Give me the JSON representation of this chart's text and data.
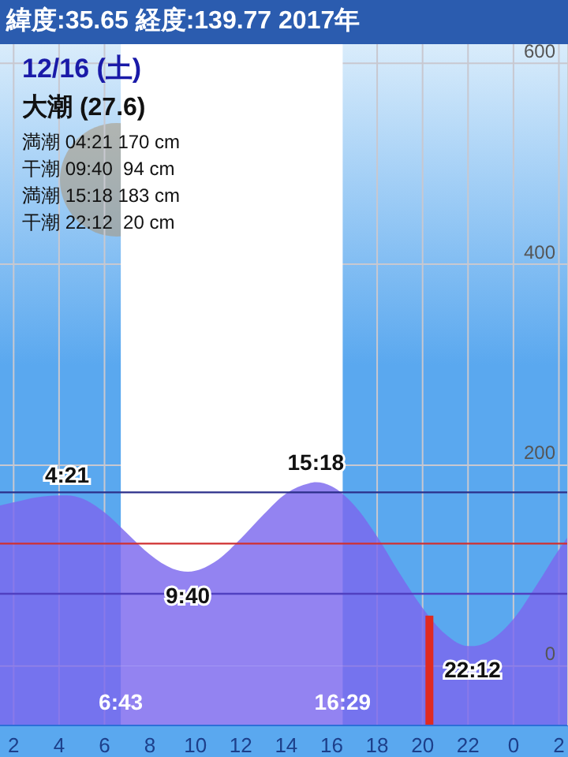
{
  "chart_data": {
    "type": "area",
    "title": "緯度:35.65 経度:139.77  2017年",
    "subtitle": "12/16 (土)",
    "annotations": [
      "大潮 (27.6)",
      "満潮 04:21 170 cm",
      "干潮 09:40  94 cm",
      "満潮 15:18 183 cm",
      "干潮 22:12  20 cm",
      {
        "text": "4:21",
        "x": "2017-12-16T04:21",
        "y": 170
      },
      {
        "text": "9:40",
        "x": "2017-12-16T09:40",
        "y": 94
      },
      {
        "text": "15:18",
        "x": "2017-12-16T15:18",
        "y": 183
      },
      {
        "text": "22:12",
        "x": "2017-12-16T22:12",
        "y": 20
      },
      {
        "text": "6:43",
        "x": "2017-12-16T06:43"
      },
      {
        "text": "16:29",
        "x": "2017-12-16T16:29"
      }
    ],
    "x": [
      "2017-12-16T01:24",
      "2017-12-16T02:00",
      "2017-12-16T03:00",
      "2017-12-16T04:00",
      "2017-12-16T04:21",
      "2017-12-16T05:00",
      "2017-12-16T06:00",
      "2017-12-16T07:00",
      "2017-12-16T08:00",
      "2017-12-16T09:00",
      "2017-12-16T09:40",
      "2017-12-16T10:00",
      "2017-12-16T11:00",
      "2017-12-16T12:00",
      "2017-12-16T13:00",
      "2017-12-16T14:00",
      "2017-12-16T15:00",
      "2017-12-16T15:18",
      "2017-12-16T16:00",
      "2017-12-16T17:00",
      "2017-12-16T18:00",
      "2017-12-16T19:00",
      "2017-12-16T20:00",
      "2017-12-16T21:00",
      "2017-12-16T22:00",
      "2017-12-16T22:12",
      "2017-12-16T23:00",
      "2017-12-17T00:00",
      "2017-12-17T01:00",
      "2017-12-17T02:00",
      "2017-12-17T02:24"
    ],
    "series": [
      {
        "color": "#7b68ee",
        "values": [
          160,
          163,
          168,
          170,
          170,
          167,
          153,
          132,
          111,
          97,
          94,
          95,
          106,
          127,
          151,
          172,
          182,
          183,
          179,
          160,
          129,
          92,
          58,
          32,
          20,
          20,
          26,
          47,
          80,
          116,
          129
        ]
      }
    ],
    "xlim": [
      "2017-12-16T01:24",
      "2017-12-17T02:24"
    ],
    "xticks": [
      {
        "value": "2017-12-16T02:00",
        "label": "2"
      },
      {
        "value": "2017-12-16T04:00",
        "label": "4"
      },
      {
        "value": "2017-12-16T06:00",
        "label": "6"
      },
      {
        "value": "2017-12-16T08:00",
        "label": "8"
      },
      {
        "value": "2017-12-16T10:00",
        "label": "10"
      },
      {
        "value": "2017-12-16T12:00",
        "label": "12"
      },
      {
        "value": "2017-12-16T14:00",
        "label": "14"
      },
      {
        "value": "2017-12-16T16:00",
        "label": "16"
      },
      {
        "value": "2017-12-16T18:00",
        "label": "18"
      },
      {
        "value": "2017-12-16T20:00",
        "label": "20"
      },
      {
        "value": "2017-12-16T22:00",
        "label": "22"
      },
      {
        "value": "2017-12-17T00:00",
        "label": "0"
      },
      {
        "value": "2017-12-17T02:00",
        "label": "2"
      }
    ],
    "ylim": [
      -59,
      619
    ],
    "yticks": [
      0,
      200,
      400,
      600
    ],
    "bands": [
      {
        "axis": "x",
        "from": "2017-12-16T06:43",
        "to": "2017-12-16T16:29",
        "color": "#ffffff"
      },
      {
        "axis": "y",
        "from": -59,
        "to": 0,
        "color": "#7b68ee"
      }
    ],
    "ref_lines": [
      {
        "axis": "y",
        "value": 173,
        "color": "#2b2f8a"
      },
      {
        "axis": "y",
        "value": 122,
        "color": "#d03030"
      },
      {
        "axis": "y",
        "value": 72,
        "color": "#5040c0"
      },
      {
        "axis": "x",
        "value": "2017-12-16T20:18",
        "color": "#e02a20"
      }
    ],
    "grid": true
  }
}
